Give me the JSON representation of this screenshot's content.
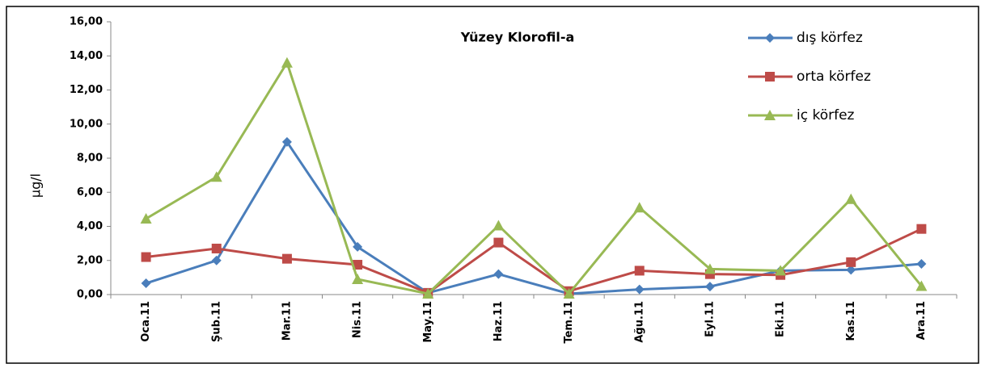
{
  "chart_data": {
    "type": "line",
    "title": "Yüzey  Klorofil-a",
    "y_label": "µg/l",
    "categories": [
      "Oca.11",
      "Şub.11",
      "Mar.11",
      "Nis.11",
      "May.11",
      "Haz.11",
      "Tem.11",
      "Ağu.11",
      "Eyl.11",
      "Eki.11",
      "Kas.11",
      "Ara.11"
    ],
    "series": [
      {
        "name": "dış körfez",
        "color": "#4a7ebb",
        "marker": "diamond",
        "values": [
          0.66,
          2.0,
          8.95,
          2.8,
          0.1,
          1.2,
          0.05,
          0.3,
          0.47,
          1.4,
          1.45,
          1.8
        ]
      },
      {
        "name": "orta körfez",
        "color": "#be4b48",
        "marker": "square",
        "values": [
          2.2,
          2.7,
          2.1,
          1.75,
          0.1,
          3.05,
          0.2,
          1.4,
          1.2,
          1.15,
          1.9,
          3.85
        ]
      },
      {
        "name": "iç körfez",
        "color": "#98b954",
        "marker": "triangle",
        "values": [
          4.45,
          6.9,
          13.6,
          0.9,
          0.05,
          4.05,
          0.05,
          5.1,
          1.5,
          1.4,
          5.6,
          0.5
        ]
      }
    ],
    "ylim": [
      0,
      16
    ],
    "yticks": [
      {
        "value": 0,
        "label": "0,00"
      },
      {
        "value": 2,
        "label": "2,00"
      },
      {
        "value": 4,
        "label": "4,00"
      },
      {
        "value": 6,
        "label": "6,00"
      },
      {
        "value": 8,
        "label": "8,00"
      },
      {
        "value": 10,
        "label": "10,00"
      },
      {
        "value": 12,
        "label": "12,00"
      },
      {
        "value": 14,
        "label": "14,00"
      },
      {
        "value": 16,
        "label": "16,00"
      }
    ],
    "legend": "right",
    "grid": false
  }
}
